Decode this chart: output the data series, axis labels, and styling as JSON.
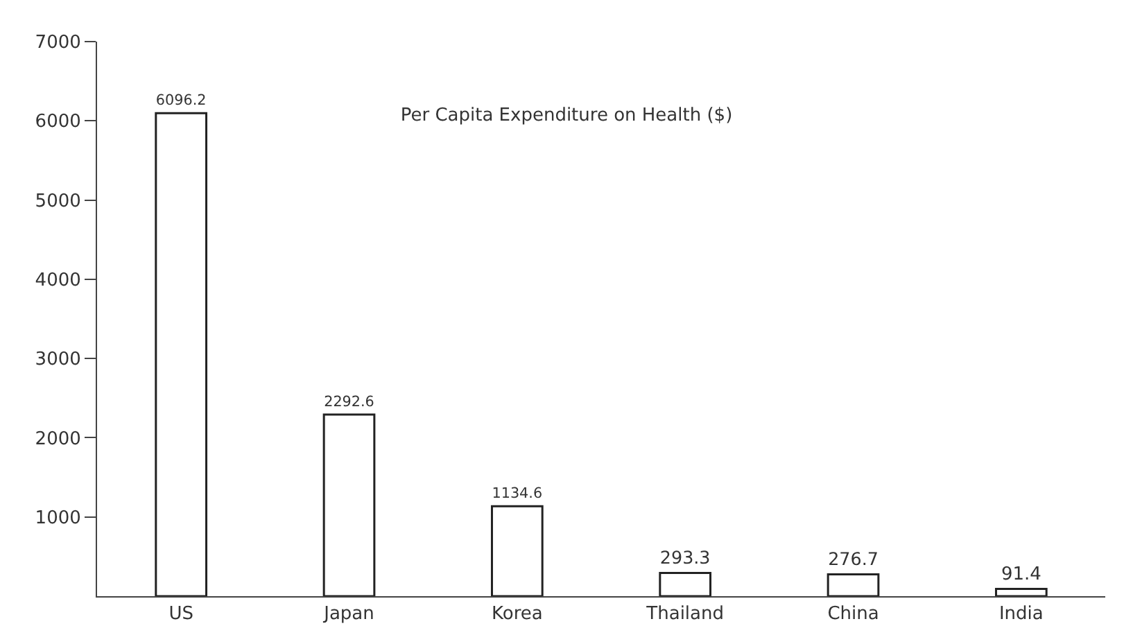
{
  "chart_data": {
    "type": "bar",
    "title": "Per Capita Expenditure on Health ($)",
    "categories": [
      "US",
      "Japan",
      "Korea",
      "Thailand",
      "China",
      "India"
    ],
    "values": [
      6096.2,
      2292.6,
      1134.6,
      293.3,
      276.7,
      91.4
    ],
    "color": "#ffffff",
    "ylim": [
      0,
      7000
    ],
    "yticks": [
      1000,
      2000,
      3000,
      4000,
      5000,
      6000,
      7000
    ],
    "grid": false,
    "legend": false,
    "data_labels": true
  }
}
